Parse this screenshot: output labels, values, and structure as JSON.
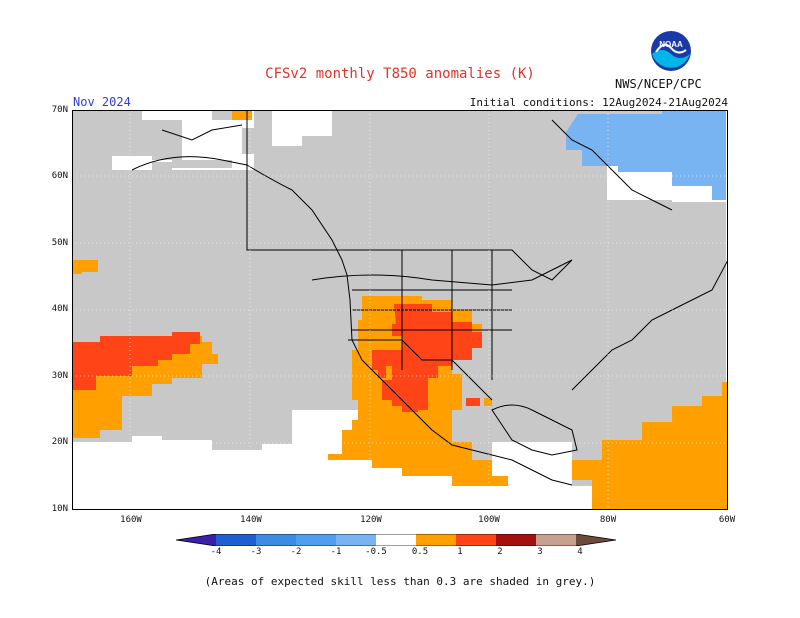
{
  "title": "CFSv2 monthly T850 anomalies (K)",
  "month": "Nov 2024",
  "initial_conditions": "Initial conditions: 12Aug2024-21Aug2024",
  "agency": "NWS/NCEP/CPC",
  "logo_text": "NOAA",
  "lat_labels": [
    "70N",
    "60N",
    "50N",
    "40N",
    "30N",
    "20N",
    "10N"
  ],
  "lon_labels": [
    "160W",
    "140W",
    "120W",
    "100W",
    "80W",
    "60W"
  ],
  "colorbar": {
    "labels": [
      "-4",
      "-3",
      "-2",
      "-1",
      "-0.5",
      "0.5",
      "1",
      "2",
      "3",
      "4"
    ],
    "colors": [
      "#3b1fa8",
      "#1f5fd0",
      "#3c8ce6",
      "#78b4f2",
      "#ffffff",
      "#ffa000",
      "#ff4418",
      "#a41010",
      "#c8a090",
      "#6e4a3a"
    ]
  },
  "colors": {
    "skill_shade": "#c8c8c8",
    "warm1": "#ffa000",
    "warm2": "#ff4418",
    "cool1": "#78b4f2",
    "border": "#000000"
  },
  "note": "(Areas of expected skill less than 0.3 are shaded in grey.)"
}
